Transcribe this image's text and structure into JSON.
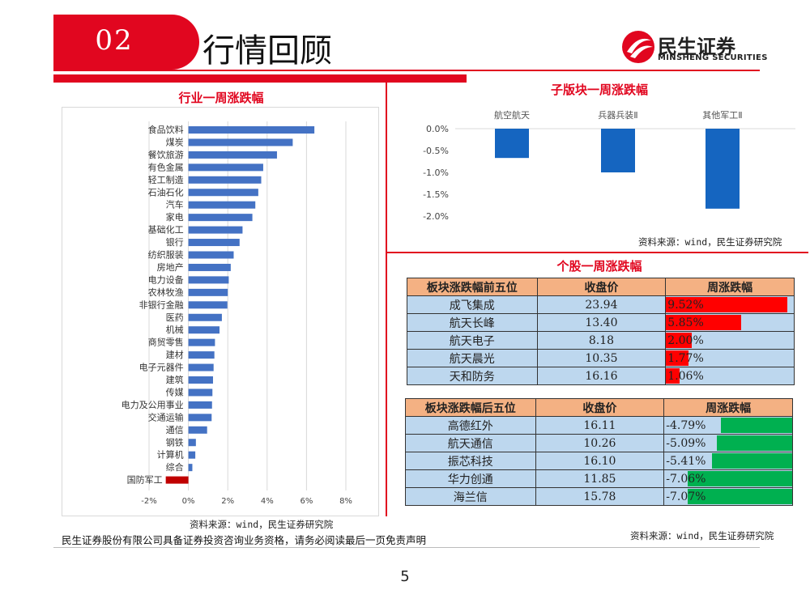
{
  "header": {
    "section_number": "02",
    "section_title": "行情回顾",
    "logo_name": "民生证券",
    "logo_english": "MINSHENG SECURITIES"
  },
  "colors": {
    "brand_red": "#e1061f",
    "bar_blue": "#4472c4",
    "column_blue": "#1565c0",
    "negative_bar": "#c00000",
    "gain_red": "#ff0000",
    "loss_green": "#00b050",
    "table_header": "#f4b183",
    "table_cell": "#bdd7ee"
  },
  "industry_chart": {
    "title": "行业一周涨跌幅",
    "source": "资料来源：wind，民生证券研究院"
  },
  "subsector_chart": {
    "title": "子版块一周涨跌幅",
    "source": "资料来源：wind，民生证券研究院"
  },
  "stocks": {
    "title": "个股一周涨跌幅",
    "source": "资料来源：wind，民生证券研究院",
    "top": {
      "headers": [
        "板块涨跌幅前五位",
        "收盘价",
        "周涨跌幅"
      ],
      "rows": [
        {
          "name": "成飞集成",
          "close": "23.94",
          "change": "9.52%",
          "value": 9.52
        },
        {
          "name": "航天长峰",
          "close": "13.40",
          "change": "5.85%",
          "value": 5.85
        },
        {
          "name": "航天电子",
          "close": "8.18",
          "change": "2.00%",
          "value": 2.0
        },
        {
          "name": "航天晨光",
          "close": "10.35",
          "change": "1.77%",
          "value": 1.77
        },
        {
          "name": "天和防务",
          "close": "16.16",
          "change": "1.06%",
          "value": 1.06
        }
      ]
    },
    "bottom": {
      "headers": [
        "板块涨跌幅后五位",
        "收盘价",
        "周涨跌幅"
      ],
      "rows": [
        {
          "name": "高德红外",
          "close": "16.11",
          "change": "-4.79%",
          "value": -4.79
        },
        {
          "name": "航天通信",
          "close": "10.26",
          "change": "-5.09%",
          "value": -5.09
        },
        {
          "name": "振芯科技",
          "close": "16.10",
          "change": "-5.41%",
          "value": -5.41
        },
        {
          "name": "华力创通",
          "close": "11.85",
          "change": "-7.06%",
          "value": -7.06
        },
        {
          "name": "海兰信",
          "close": "15.78",
          "change": "-7.07%",
          "value": -7.07
        }
      ]
    }
  },
  "footer": {
    "disclaimer": "民生证券股份有限公司具备证券投资咨询业务资格，请务必阅读最后一页免责声明",
    "page_number": "5"
  },
  "chart_data": [
    {
      "type": "bar",
      "orientation": "horizontal",
      "title": "行业一周涨跌幅",
      "categories": [
        "食品饮料",
        "煤炭",
        "餐饮旅游",
        "有色金属",
        "轻工制造",
        "石油石化",
        "汽车",
        "家电",
        "基础化工",
        "银行",
        "纺织服装",
        "房地产",
        "电力设备",
        "农林牧渔",
        "非银行金融",
        "医药",
        "机械",
        "商贸零售",
        "建材",
        "电子元器件",
        "建筑",
        "传媒",
        "电力及公用事业",
        "交通运输",
        "通信",
        "钢铁",
        "计算机",
        "综合",
        "国防军工"
      ],
      "values": [
        6.4,
        5.3,
        4.5,
        3.8,
        3.7,
        3.55,
        3.4,
        3.25,
        2.75,
        2.6,
        2.3,
        2.15,
        2.05,
        2.0,
        1.98,
        1.7,
        1.58,
        1.35,
        1.32,
        1.28,
        1.25,
        1.22,
        1.2,
        1.18,
        0.95,
        0.38,
        0.35,
        0.2,
        -1.15
      ],
      "xticks": [
        "-2%",
        "0%",
        "2%",
        "4%",
        "6%",
        "8%"
      ],
      "xlim": [
        -2,
        8
      ],
      "grid": true
    },
    {
      "type": "bar",
      "title": "子版块一周涨跌幅",
      "categories": [
        "航空航天",
        "兵器兵装Ⅱ",
        "其他军工Ⅱ"
      ],
      "values": [
        -0.67,
        -1.0,
        -1.83
      ],
      "yticks": [
        "0.0%",
        "-0.5%",
        "-1.0%",
        "-1.5%",
        "-2.0%"
      ],
      "ylim": [
        -2.0,
        0.0
      ],
      "grid": false
    }
  ]
}
